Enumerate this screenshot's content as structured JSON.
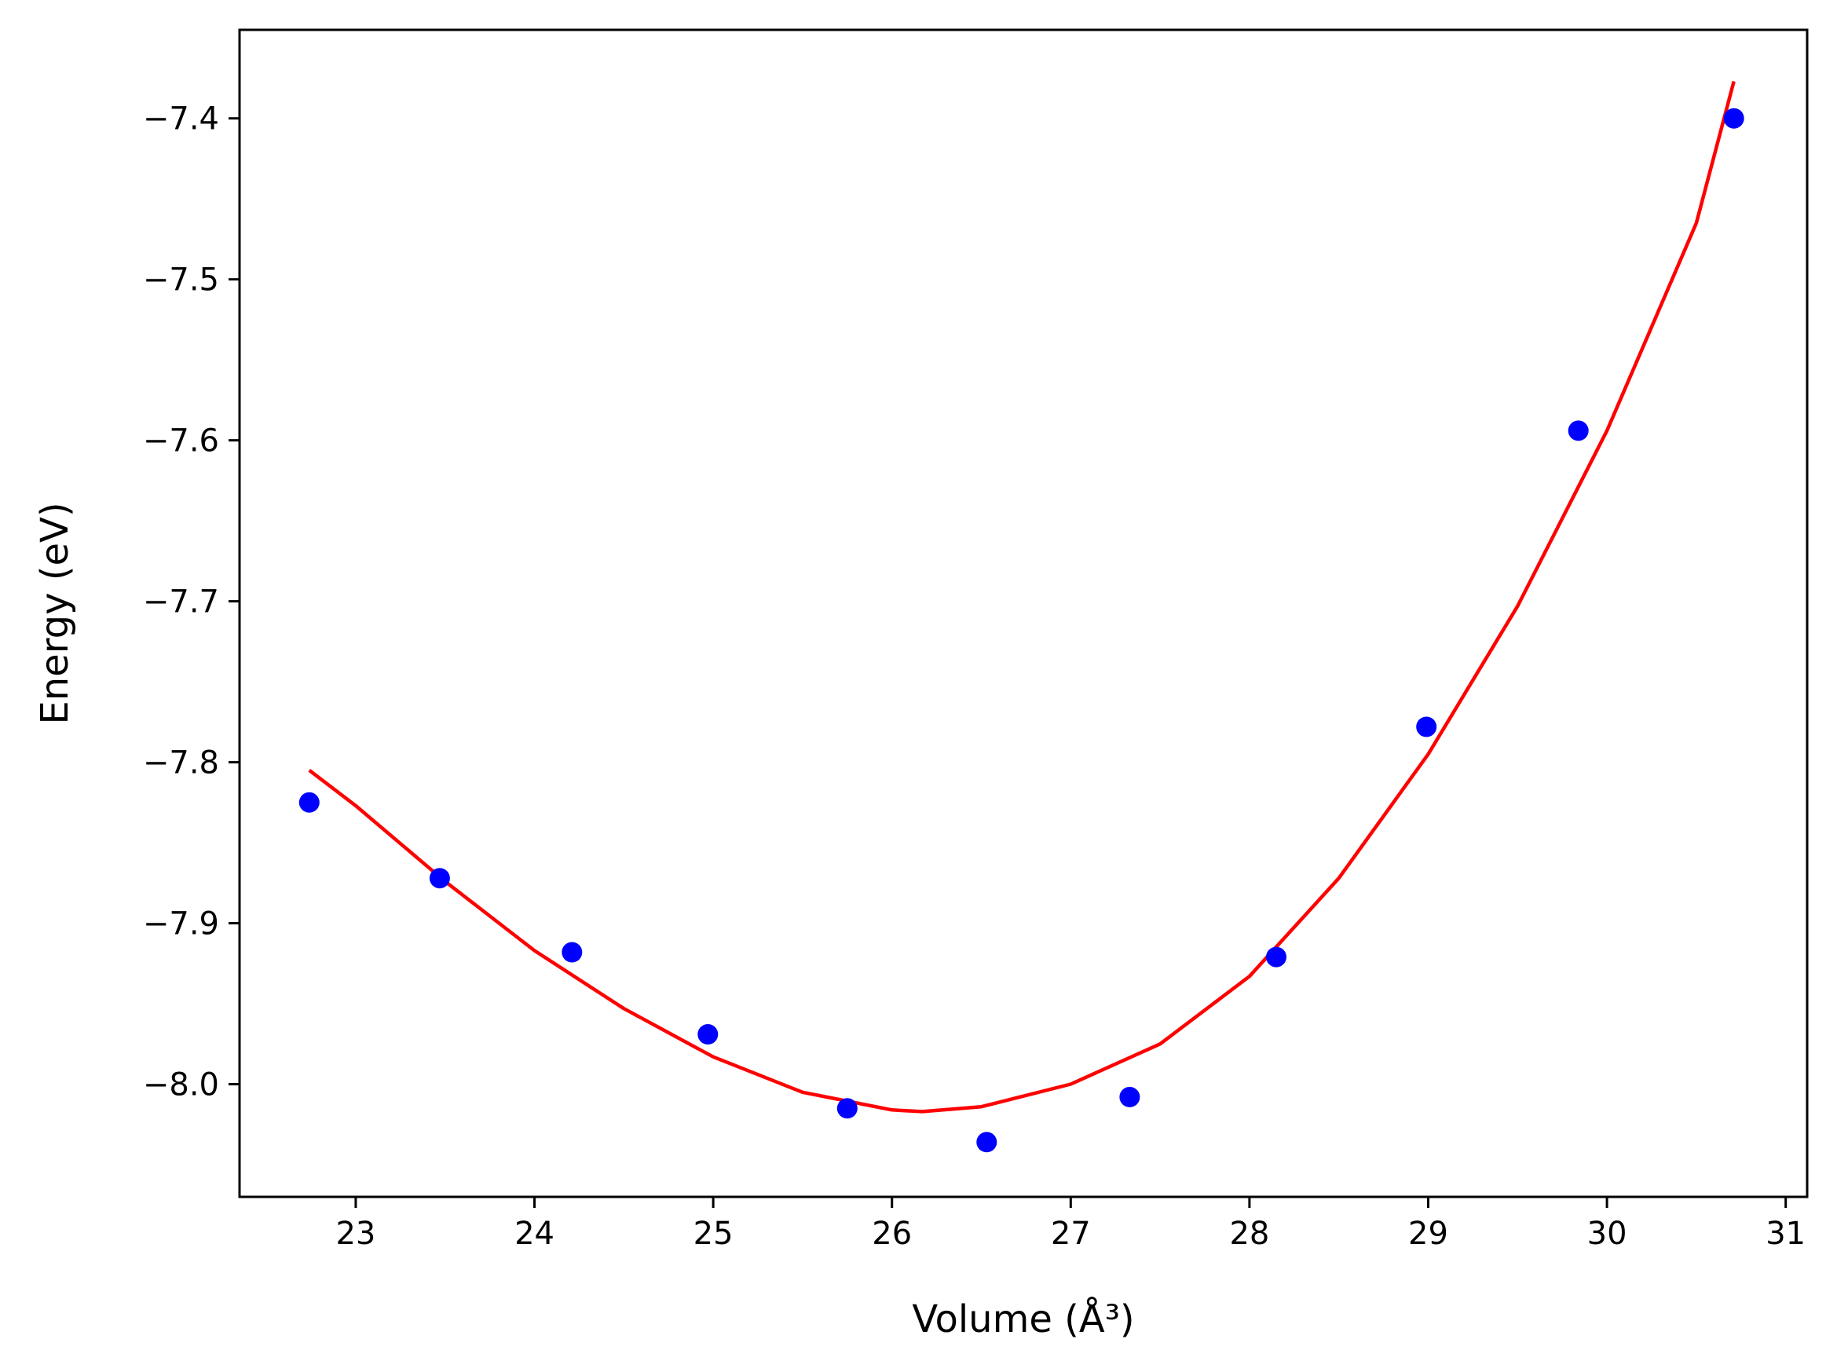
{
  "chart_data": {
    "type": "scatter",
    "xlabel": "Volume (Å³)",
    "ylabel": "Energy (eV)",
    "xlim": [
      22.35,
      31.12
    ],
    "ylim": [
      -8.07,
      -7.345
    ],
    "x_ticks": [
      23,
      24,
      25,
      26,
      27,
      28,
      29,
      30,
      31
    ],
    "y_ticks": [
      -8.0,
      -7.9,
      -7.8,
      -7.7,
      -7.6,
      -7.5,
      -7.4
    ],
    "x_tick_labels": [
      "23",
      "24",
      "25",
      "26",
      "27",
      "28",
      "29",
      "30",
      "31"
    ],
    "y_tick_labels": [
      "−8.0",
      "−7.9",
      "−7.8",
      "−7.7",
      "−7.6",
      "−7.5",
      "−7.4"
    ],
    "grid": false,
    "series": [
      {
        "kind": "points",
        "color": "#0000ff",
        "x": [
          22.74,
          23.47,
          24.21,
          24.97,
          25.75,
          26.53,
          27.33,
          28.15,
          28.99,
          29.84,
          30.71
        ],
        "y": [
          -7.825,
          -7.872,
          -7.918,
          -7.969,
          -8.015,
          -8.036,
          -8.008,
          -7.921,
          -7.778,
          -7.594,
          -7.4
        ]
      },
      {
        "kind": "fit-line",
        "color": "#ff0000",
        "x": [
          22.74,
          23.0,
          23.5,
          24.0,
          24.5,
          25.0,
          25.5,
          26.0,
          26.17,
          26.5,
          27.0,
          27.5,
          28.0,
          28.5,
          29.0,
          29.5,
          30.0,
          30.5,
          30.71
        ],
        "y": [
          -7.805,
          -7.827,
          -7.874,
          -7.917,
          -7.953,
          -7.983,
          -8.005,
          -8.016,
          -8.017,
          -8.014,
          -8.0,
          -7.975,
          -7.933,
          -7.872,
          -7.795,
          -7.703,
          -7.594,
          -7.465,
          -7.377
        ]
      }
    ]
  }
}
